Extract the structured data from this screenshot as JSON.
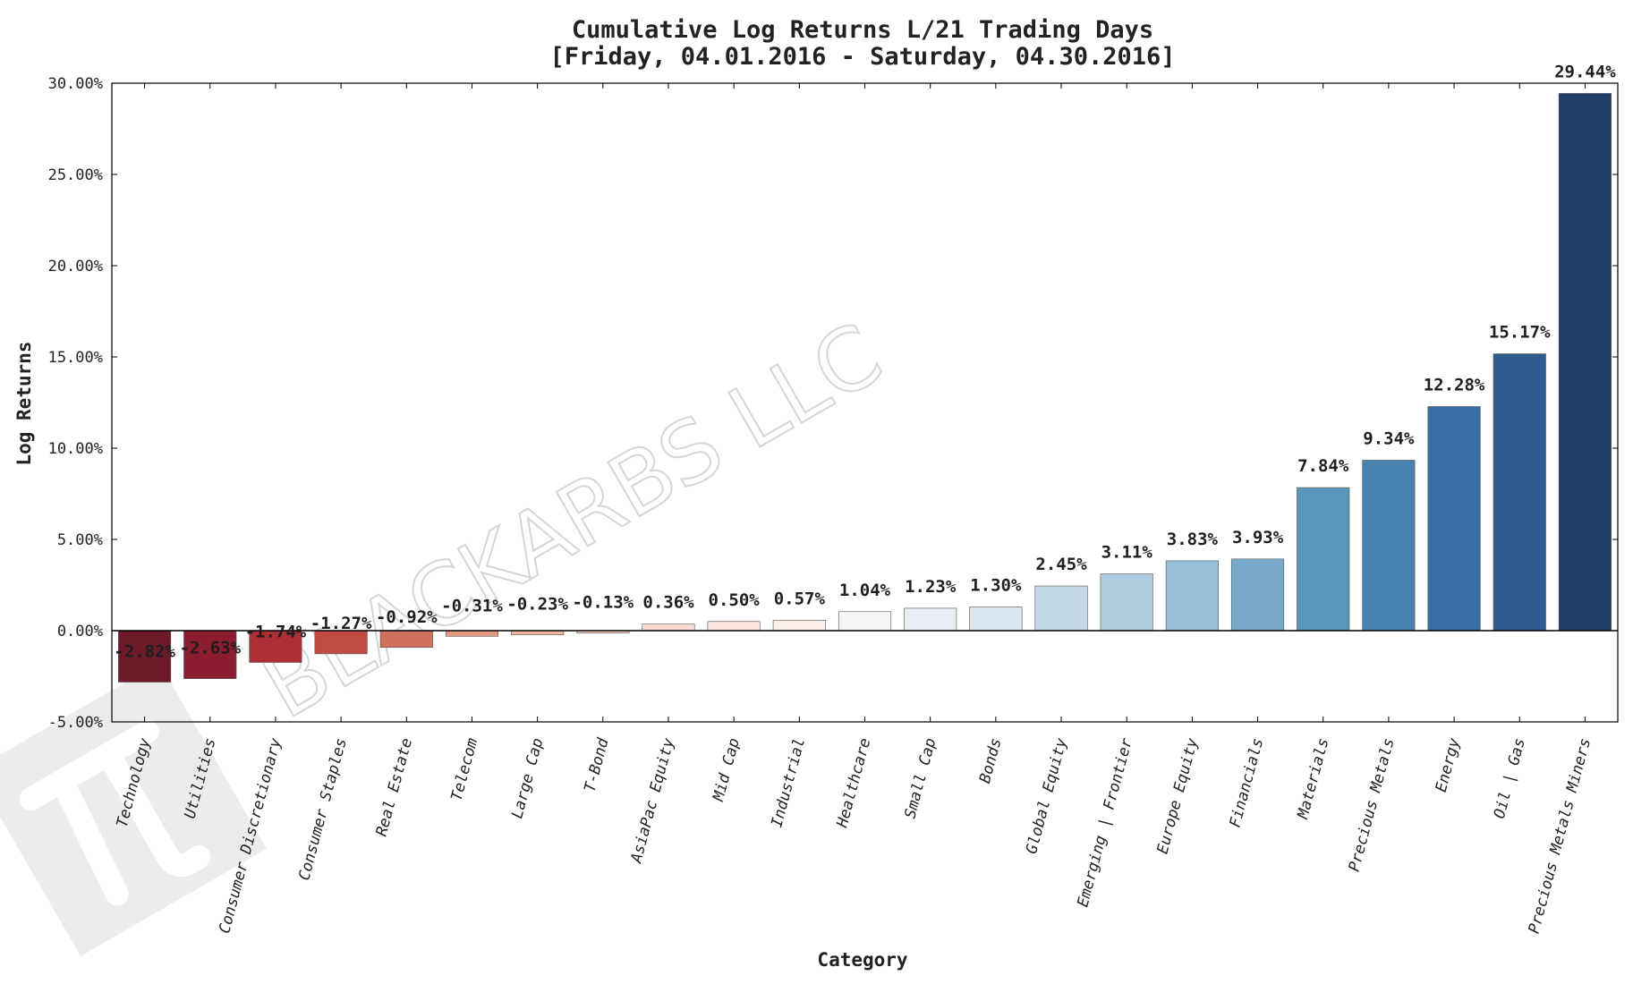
{
  "chart_data": {
    "type": "bar",
    "title": "Cumulative Log Returns L/21 Trading Days",
    "subtitle": "[Friday, 04.01.2016 - Saturday, 04.30.2016]",
    "xlabel": "Category",
    "ylabel": "Log Returns",
    "ylim": [
      -5,
      30
    ],
    "yticks": [
      "-5.00%",
      "0.00%",
      "5.00%",
      "10.00%",
      "15.00%",
      "20.00%",
      "25.00%",
      "30.00%"
    ],
    "grid": false,
    "categories": [
      "Technology",
      "Utilities",
      "Consumer Discretionary",
      "Consumer Staples",
      "Real Estate",
      "Telecom",
      "Large Cap",
      "T-Bond",
      "AsiaPac Equity",
      "Mid Cap",
      "Industrial",
      "Healthcare",
      "Small Cap",
      "Bonds",
      "Global Equity",
      "Emerging | Frontier",
      "Europe Equity",
      "Financials",
      "Materials",
      "Precious Metals",
      "Energy",
      "Oil | Gas",
      "Precious Metals Miners"
    ],
    "values": [
      -2.82,
      -2.63,
      -1.74,
      -1.27,
      -0.92,
      -0.31,
      -0.23,
      -0.13,
      0.36,
      0.5,
      0.57,
      1.04,
      1.23,
      1.3,
      2.45,
      3.11,
      3.83,
      3.93,
      7.84,
      9.34,
      12.28,
      15.17,
      29.44
    ],
    "labels": [
      "-2.82%",
      "-2.63%",
      "-1.74%",
      "-1.27%",
      "-0.92%",
      "-0.31%",
      "-0.23%",
      "-0.13%",
      "0.36%",
      "0.50%",
      "0.57%",
      "1.04%",
      "1.23%",
      "1.30%",
      "2.45%",
      "3.11%",
      "3.83%",
      "3.93%",
      "7.84%",
      "9.34%",
      "12.28%",
      "15.17%",
      "29.44%"
    ],
    "colors": [
      "#6d1a2b",
      "#8c1d2e",
      "#ad2f36",
      "#c14a45",
      "#d0705f",
      "#e59a80",
      "#f0b89f",
      "#f6d2c0",
      "#f9dccf",
      "#fbe7dd",
      "#fbf0ea",
      "#f3f5f7",
      "#e8eef3",
      "#dbe6ef",
      "#c3d8e5",
      "#afcddf",
      "#96bed6",
      "#78a9c9",
      "#5b95ba",
      "#4a82af",
      "#3a6ea3",
      "#2d5b8f",
      "#213f66"
    ]
  },
  "watermark": {
    "text": "BLACKARBS LLC"
  }
}
